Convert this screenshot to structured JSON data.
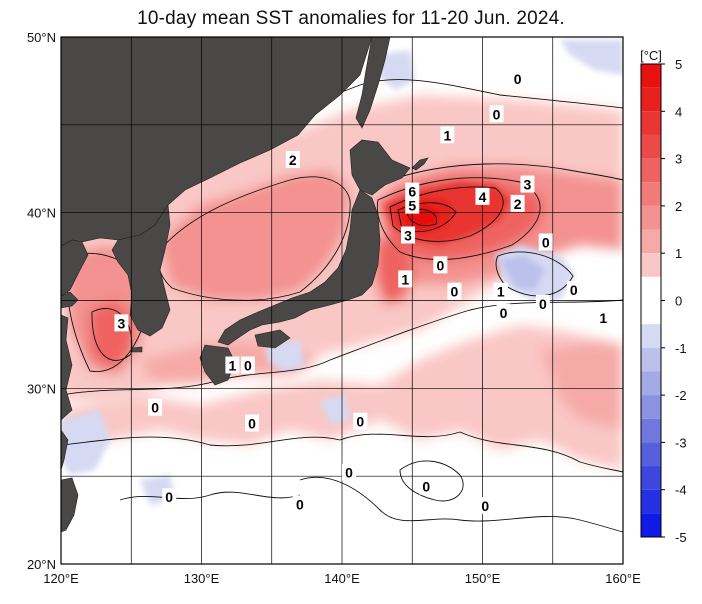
{
  "title": "10-day mean SST anomalies for 11-20 Jun. 2024.",
  "map": {
    "lon_range": [
      120,
      160
    ],
    "lat_range": [
      20,
      50
    ],
    "lon_labels": [
      {
        "lon": 120,
        "text": "120°E"
      },
      {
        "lon": 130,
        "text": "130°E"
      },
      {
        "lon": 140,
        "text": "140°E"
      },
      {
        "lon": 150,
        "text": "150°E"
      },
      {
        "lon": 160,
        "text": "160°E"
      }
    ],
    "lat_labels": [
      {
        "lat": 50,
        "text": "50°N"
      },
      {
        "lat": 40,
        "text": "40°N"
      },
      {
        "lat": 30,
        "text": "30°N"
      },
      {
        "lat": 20,
        "text": "20°N"
      }
    ],
    "land_color": "#4a4747",
    "grid_color": "#000000",
    "contour_labels": [
      {
        "text": "0",
        "lon": 152.5,
        "lat": 47.6
      },
      {
        "text": "0",
        "lon": 151.0,
        "lat": 45.6
      },
      {
        "text": "1",
        "lon": 147.5,
        "lat": 44.4
      },
      {
        "text": "2",
        "lon": 136.5,
        "lat": 43.0
      },
      {
        "text": "6",
        "lon": 145.0,
        "lat": 41.2
      },
      {
        "text": "5",
        "lon": 145.0,
        "lat": 40.4
      },
      {
        "text": "4",
        "lon": 150.0,
        "lat": 40.9
      },
      {
        "text": "3",
        "lon": 153.2,
        "lat": 41.6
      },
      {
        "text": "2",
        "lon": 152.5,
        "lat": 40.5
      },
      {
        "text": "3",
        "lon": 144.7,
        "lat": 38.7
      },
      {
        "text": "0",
        "lon": 154.5,
        "lat": 38.3
      },
      {
        "text": "1",
        "lon": 144.5,
        "lat": 36.2
      },
      {
        "text": "0",
        "lon": 147.0,
        "lat": 37.0
      },
      {
        "text": "0",
        "lon": 148.0,
        "lat": 35.5
      },
      {
        "text": "1",
        "lon": 151.3,
        "lat": 35.5
      },
      {
        "text": "0",
        "lon": 156.5,
        "lat": 35.6
      },
      {
        "text": "0",
        "lon": 151.5,
        "lat": 34.3
      },
      {
        "text": "0",
        "lon": 154.3,
        "lat": 34.8
      },
      {
        "text": "1",
        "lon": 158.6,
        "lat": 34.0
      },
      {
        "text": "3",
        "lon": 124.3,
        "lat": 33.7
      },
      {
        "text": "1",
        "lon": 132.2,
        "lat": 31.3
      },
      {
        "text": "0",
        "lon": 133.3,
        "lat": 31.3
      },
      {
        "text": "0",
        "lon": 126.7,
        "lat": 28.9
      },
      {
        "text": "0",
        "lon": 133.6,
        "lat": 28.0
      },
      {
        "text": "0",
        "lon": 141.3,
        "lat": 28.1
      },
      {
        "text": "0",
        "lon": 140.5,
        "lat": 25.2
      },
      {
        "text": "0",
        "lon": 146.0,
        "lat": 24.4
      },
      {
        "text": "0",
        "lon": 127.7,
        "lat": 23.8
      },
      {
        "text": "0",
        "lon": 137.0,
        "lat": 23.4
      },
      {
        "text": "0",
        "lon": 150.2,
        "lat": 23.3
      }
    ]
  },
  "colorbar": {
    "unit": "[°C]",
    "range": [
      -5,
      5
    ],
    "ticks": [
      {
        "value": 5,
        "text": "5"
      },
      {
        "value": 4,
        "text": "4"
      },
      {
        "value": 3,
        "text": "3"
      },
      {
        "value": 2,
        "text": "2"
      },
      {
        "value": 1,
        "text": "1"
      },
      {
        "value": 0,
        "text": "0"
      },
      {
        "value": -1,
        "text": "-1"
      },
      {
        "value": -2,
        "text": "-2"
      },
      {
        "value": -3,
        "text": "-3"
      },
      {
        "value": -4,
        "text": "-4"
      },
      {
        "value": -5,
        "text": "-5"
      }
    ],
    "bands": [
      {
        "from": 4.5,
        "to": 5.0,
        "color": "#e8110f"
      },
      {
        "from": 4.0,
        "to": 4.5,
        "color": "#e8211f"
      },
      {
        "from": 3.5,
        "to": 4.0,
        "color": "#e93533"
      },
      {
        "from": 3.0,
        "to": 3.5,
        "color": "#eb4a48"
      },
      {
        "from": 2.5,
        "to": 3.0,
        "color": "#ee6361"
      },
      {
        "from": 2.0,
        "to": 2.5,
        "color": "#f07b79"
      },
      {
        "from": 1.5,
        "to": 2.0,
        "color": "#f39290"
      },
      {
        "from": 1.0,
        "to": 1.5,
        "color": "#f6aaa8"
      },
      {
        "from": 0.5,
        "to": 1.0,
        "color": "#f9c7c5"
      },
      {
        "from": 0.0,
        "to": 0.5,
        "color": "#ffffff"
      },
      {
        "from": -0.5,
        "to": 0.0,
        "color": "#ffffff"
      },
      {
        "from": -1.0,
        "to": -0.5,
        "color": "#d6d9f2"
      },
      {
        "from": -1.5,
        "to": -1.0,
        "color": "#bcc1ec"
      },
      {
        "from": -2.0,
        "to": -1.5,
        "color": "#a4aae6"
      },
      {
        "from": -2.5,
        "to": -2.0,
        "color": "#8b92e2"
      },
      {
        "from": -3.0,
        "to": -2.5,
        "color": "#7078de"
      },
      {
        "from": -3.5,
        "to": -3.0,
        "color": "#5660dc"
      },
      {
        "from": -4.0,
        "to": -3.5,
        "color": "#3d47dd"
      },
      {
        "from": -4.5,
        "to": -4.0,
        "color": "#2530e2"
      },
      {
        "from": -5.0,
        "to": -4.5,
        "color": "#0f1ae8"
      }
    ]
  }
}
